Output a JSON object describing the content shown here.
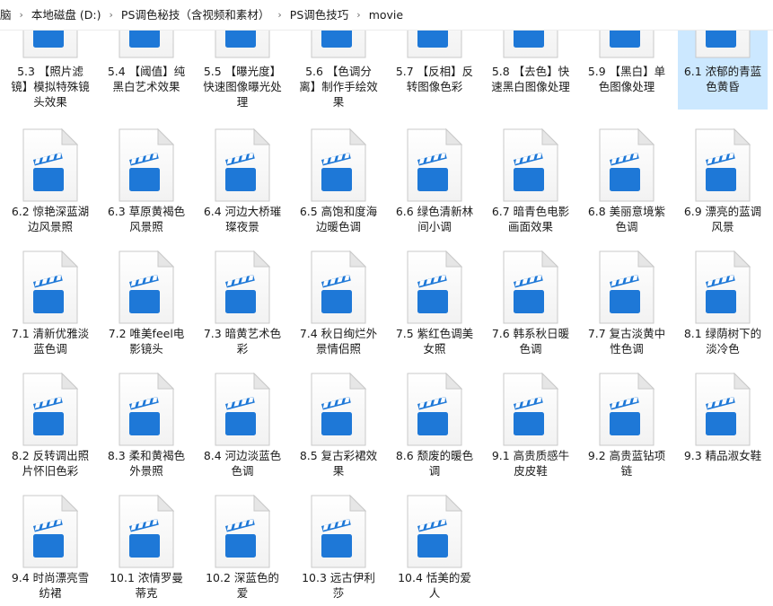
{
  "breadcrumb": [
    "脑",
    "本地磁盘 (D:)",
    "PS调色秘技（含视频和素材）",
    "PS调色技巧",
    "movie"
  ],
  "breadcrumb_separator": "›",
  "icon": "video-file-icon",
  "colors": {
    "selection": "#cce8ff",
    "icon_blue": "#1e78d7"
  },
  "partial_row": [
    {
      "label": "5.3 【照片滤镜】模拟特殊镜头效果"
    },
    {
      "label": "5.4 【阈值】纯黑白艺术效果"
    },
    {
      "label": "5.5 【曝光度】快速图像曝光处理"
    },
    {
      "label": "5.6 【色调分离】制作手绘效果"
    },
    {
      "label": "5.7 【反相】反转图像色彩"
    },
    {
      "label": "5.8 【去色】快速黑白图像处理"
    },
    {
      "label": "5.9 【黑白】单色图像处理"
    },
    {
      "label": "6.1 浓郁的青蓝色黄昏",
      "selected": true
    }
  ],
  "rows": [
    [
      {
        "label": "6.2 惊艳深蓝湖边风景照"
      },
      {
        "label": "6.3 草原黄褐色风景照"
      },
      {
        "label": "6.4 河边大桥璀璨夜景"
      },
      {
        "label": "6.5 高饱和度海边暖色调"
      },
      {
        "label": "6.6 绿色清新林间小调"
      },
      {
        "label": "6.7 暗青色电影画面效果"
      },
      {
        "label": "6.8 美丽意境紫色调"
      },
      {
        "label": "6.9 漂亮的蓝调风景"
      }
    ],
    [
      {
        "label": "7.1 清新优雅淡蓝色调"
      },
      {
        "label": "7.2 唯美feel电影镜头"
      },
      {
        "label": "7.3 暗黄艺术色彩"
      },
      {
        "label": "7.4 秋日绚烂外景情侣照"
      },
      {
        "label": "7.5 紫红色调美女照"
      },
      {
        "label": "7.6 韩系秋日暖色调"
      },
      {
        "label": "7.7 复古淡黄中性色调"
      },
      {
        "label": "8.1 绿荫树下的淡冷色"
      }
    ],
    [
      {
        "label": "8.2 反转调出照片怀旧色彩"
      },
      {
        "label": "8.3 柔和黄褐色外景照"
      },
      {
        "label": "8.4 河边淡蓝色色调"
      },
      {
        "label": "8.5 复古彩裙效果"
      },
      {
        "label": "8.6 颓废的暖色调"
      },
      {
        "label": "9.1 高贵质感牛皮皮鞋"
      },
      {
        "label": "9.2 高贵蓝钻项链"
      },
      {
        "label": "9.3 精品淑女鞋"
      }
    ],
    [
      {
        "label": "9.4 时尚漂亮雪纺裙"
      },
      {
        "label": "10.1 浓情罗曼蒂克"
      },
      {
        "label": "10.2 深蓝色的爱"
      },
      {
        "label": "10.3 远古伊利莎"
      },
      {
        "label": "10.4 恬美的爱人"
      }
    ]
  ]
}
